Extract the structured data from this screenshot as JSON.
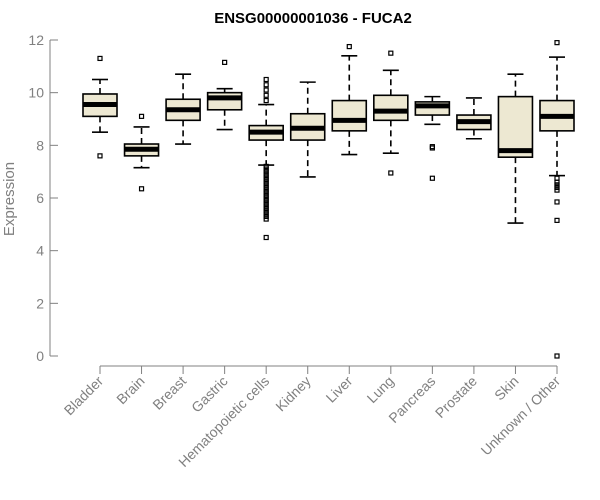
{
  "chart_data": {
    "type": "box",
    "title": "ENSG00000001036 - FUCA2",
    "ylabel": "Expression",
    "xlabel": "",
    "ylim": [
      0,
      12
    ],
    "yticks": [
      0,
      2,
      4,
      6,
      8,
      10,
      12
    ],
    "grid": false,
    "colors": {
      "box_fill": "#EDE8D2",
      "box_stroke": "#000000",
      "axis": "#808080",
      "tick_text": "#808080"
    },
    "categories": [
      "Bladder",
      "Brain",
      "Breast",
      "Gastric",
      "Hematopoietic cells",
      "Kidney",
      "Liver",
      "Lung",
      "Pancreas",
      "Prostate",
      "Skin",
      "Unknown / Other"
    ],
    "boxes": [
      {
        "category": "Bladder",
        "whisker_low": 8.5,
        "q1": 9.1,
        "median": 9.55,
        "q3": 9.95,
        "whisker_high": 10.5,
        "outliers": [
          11.3,
          7.6
        ]
      },
      {
        "category": "Brain",
        "whisker_low": 7.15,
        "q1": 7.6,
        "median": 7.85,
        "q3": 8.05,
        "whisker_high": 8.7,
        "outliers": [
          9.1,
          6.35
        ]
      },
      {
        "category": "Breast",
        "whisker_low": 8.05,
        "q1": 8.95,
        "median": 9.35,
        "q3": 9.75,
        "whisker_high": 10.7,
        "outliers": []
      },
      {
        "category": "Gastric",
        "whisker_low": 8.6,
        "q1": 9.35,
        "median": 9.8,
        "q3": 10.0,
        "whisker_high": 10.15,
        "outliers": [
          11.15
        ]
      },
      {
        "category": "Hematopoietic cells",
        "whisker_low": 7.25,
        "q1": 8.2,
        "median": 8.5,
        "q3": 8.75,
        "whisker_high": 9.55,
        "outliers": [
          10.5,
          10.3,
          10.1,
          9.9,
          9.7,
          7.2,
          7.1,
          7.0,
          6.9,
          6.8,
          6.7,
          6.6,
          6.5,
          6.4,
          6.3,
          6.2,
          6.1,
          6.0,
          5.9,
          5.8,
          5.7,
          5.6,
          5.5,
          5.4,
          5.3,
          5.2,
          4.5
        ]
      },
      {
        "category": "Kidney",
        "whisker_low": 6.8,
        "q1": 8.2,
        "median": 8.65,
        "q3": 9.2,
        "whisker_high": 10.4,
        "outliers": []
      },
      {
        "category": "Liver",
        "whisker_low": 7.65,
        "q1": 8.55,
        "median": 8.95,
        "q3": 9.7,
        "whisker_high": 11.4,
        "outliers": [
          11.75
        ]
      },
      {
        "category": "Lung",
        "whisker_low": 7.7,
        "q1": 8.95,
        "median": 9.3,
        "q3": 9.9,
        "whisker_high": 10.85,
        "outliers": [
          11.5,
          6.95
        ]
      },
      {
        "category": "Pancreas",
        "whisker_low": 8.8,
        "q1": 9.15,
        "median": 9.5,
        "q3": 9.65,
        "whisker_high": 9.85,
        "outliers": [
          7.95,
          7.9,
          6.75
        ]
      },
      {
        "category": "Prostate",
        "whisker_low": 8.25,
        "q1": 8.6,
        "median": 8.9,
        "q3": 9.15,
        "whisker_high": 9.8,
        "outliers": []
      },
      {
        "category": "Skin",
        "whisker_low": 5.05,
        "q1": 7.55,
        "median": 7.8,
        "q3": 9.85,
        "whisker_high": 10.7,
        "outliers": []
      },
      {
        "category": "Unknown / Other",
        "whisker_low": 6.85,
        "q1": 8.55,
        "median": 9.1,
        "q3": 9.7,
        "whisker_high": 11.35,
        "outliers": [
          11.9,
          6.75,
          6.6,
          6.5,
          6.4,
          6.3,
          5.85,
          5.15,
          0.0
        ]
      }
    ]
  }
}
